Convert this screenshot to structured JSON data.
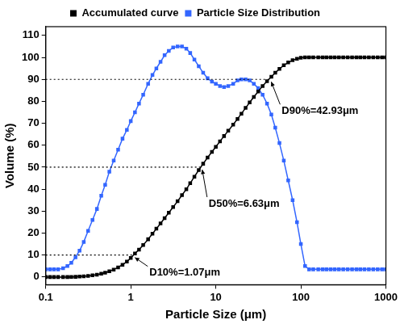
{
  "chart_data": {
    "type": "line",
    "x_label": "Particle Size (μm)",
    "y_label": "Volume (%)",
    "log": "x",
    "grid": false,
    "legend": "top",
    "xlim": [
      0.1,
      1000
    ],
    "xticks": [
      0.1,
      1,
      10,
      100,
      1000
    ],
    "ylim": [
      -3.5,
      114
    ],
    "yticks": [
      0,
      10,
      20,
      30,
      40,
      50,
      60,
      70,
      80,
      90,
      100,
      110
    ],
    "x": [
      0.1,
      0.112,
      0.125,
      0.14,
      0.16,
      0.18,
      0.2,
      0.224,
      0.25,
      0.28,
      0.315,
      0.355,
      0.4,
      0.45,
      0.5,
      0.56,
      0.63,
      0.71,
      0.8,
      0.9,
      1,
      1.12,
      1.25,
      1.4,
      1.6,
      1.8,
      2,
      2.24,
      2.5,
      2.8,
      3.15,
      3.55,
      4,
      4.5,
      5,
      5.6,
      6.3,
      7.1,
      8,
      9,
      10,
      11.2,
      12.5,
      14,
      16,
      18,
      20,
      22.4,
      25,
      28,
      31.5,
      35.5,
      40,
      45,
      50,
      56,
      63,
      71,
      80,
      90,
      100,
      112,
      125,
      140,
      160,
      180,
      200,
      224,
      250,
      280,
      315,
      355,
      400,
      450,
      500,
      560,
      630,
      710,
      800,
      900,
      1000
    ],
    "series": [
      {
        "name": "Accumulated curve",
        "color": "#000000",
        "marker": "square",
        "line_style": "solid",
        "values": [
          0,
          0,
          0,
          0,
          0,
          0,
          0.05,
          0.1,
          0.2,
          0.35,
          0.55,
          0.8,
          1.1,
          1.5,
          2,
          2.6,
          3.4,
          4.4,
          5.6,
          7,
          8.7,
          10.7,
          12.5,
          14.6,
          17.2,
          19.7,
          22,
          24.4,
          26.8,
          29.3,
          31.9,
          34.5,
          37.3,
          40,
          42.7,
          45.7,
          48.7,
          51.6,
          54.4,
          57,
          59.3,
          61.8,
          64.2,
          66.6,
          69.4,
          72,
          74.4,
          77,
          79.5,
          82,
          84.5,
          87,
          89.2,
          91.2,
          93,
          94.8,
          96.4,
          97.7,
          98.7,
          99.4,
          99.8,
          100,
          100,
          100,
          100,
          100,
          100,
          100,
          100,
          100,
          100,
          100,
          100,
          100,
          100,
          100,
          100,
          100,
          100,
          100,
          100
        ]
      },
      {
        "name": "Particle Size Distribution",
        "color": "#3366ff",
        "marker": "square",
        "line_style": "solid",
        "values": [
          3.5,
          3.5,
          3.5,
          3.5,
          4,
          5,
          6.5,
          9,
          12,
          16,
          21,
          26,
          31,
          37,
          42,
          48,
          53,
          58,
          63,
          67,
          71,
          75,
          79,
          83,
          88,
          92,
          95,
          98,
          101,
          103,
          104.5,
          105,
          105,
          104,
          102,
          99,
          96,
          93,
          90.5,
          89,
          88,
          87,
          86.5,
          87,
          88,
          89.5,
          90,
          90,
          89.5,
          88,
          86,
          83,
          79,
          74,
          68,
          61,
          53,
          44,
          35,
          25,
          15,
          5,
          3.5,
          3.5,
          3.5,
          3.5,
          3.5,
          3.5,
          3.5,
          3.5,
          3.5,
          3.5,
          3.5,
          3.5,
          3.5,
          3.5,
          3.5,
          3.5,
          3.5,
          3.5,
          3.5
        ]
      }
    ],
    "annotations": [
      {
        "text": "D10%=1.07μm",
        "x": 1.07,
        "y": 10
      },
      {
        "text": "D50%=6.63μm",
        "x": 6.63,
        "y": 50
      },
      {
        "text": "D90%=42.93μm",
        "x": 42.93,
        "y": 90
      }
    ]
  }
}
